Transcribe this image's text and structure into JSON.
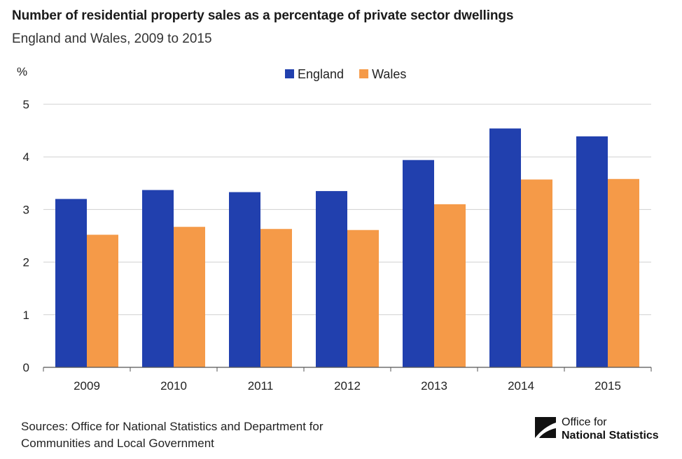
{
  "header": {
    "title": "Number of residential property sales as a percentage of private sector dwellings",
    "subtitle": "England and Wales, 2009 to 2015"
  },
  "footer": {
    "sources_line1": "Sources: Office for National Statistics and Department for",
    "sources_line2": "Communities and Local Government"
  },
  "logo": {
    "line1": "Office for",
    "line2": "National Statistics"
  },
  "chart_data": {
    "type": "bar",
    "title": "Number of residential property sales as a percentage of private sector dwellings",
    "subtitle": "England and Wales, 2009 to 2015",
    "ylabel": "%",
    "xlabel": "",
    "categories": [
      "2009",
      "2010",
      "2011",
      "2012",
      "2013",
      "2014",
      "2015"
    ],
    "series": [
      {
        "name": "England",
        "color": "#2140ae",
        "values": [
          3.2,
          3.37,
          3.33,
          3.35,
          3.94,
          4.54,
          4.39
        ]
      },
      {
        "name": "Wales",
        "color": "#f59a48",
        "values": [
          2.52,
          2.67,
          2.63,
          2.61,
          3.1,
          3.57,
          3.58
        ]
      }
    ],
    "ylim": [
      0,
      5
    ],
    "yticks": [
      0,
      1,
      2,
      3,
      4,
      5
    ],
    "grid": true,
    "legend": "top-center"
  }
}
